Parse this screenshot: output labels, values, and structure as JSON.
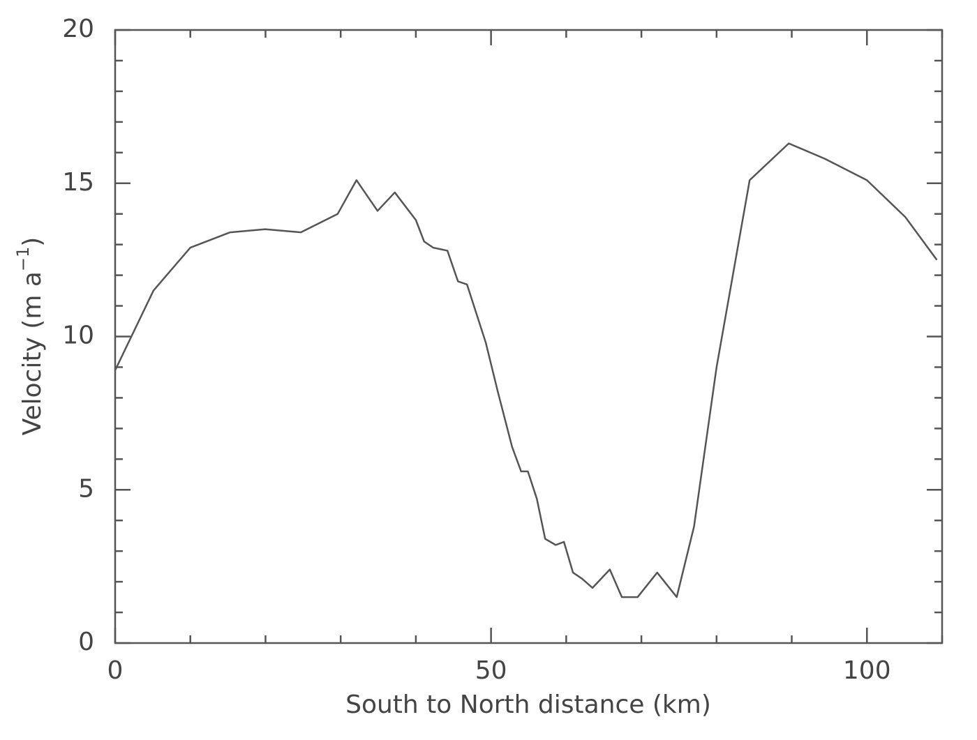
{
  "chart_data": {
    "type": "line",
    "x_label": "South to North distance (km)",
    "y_label_parts": [
      "Velocity (m a",
      "−1",
      ")"
    ],
    "xlim": [
      0,
      110
    ],
    "ylim": [
      0,
      20
    ],
    "xticks": [
      0,
      50,
      100
    ],
    "yticks": [
      0,
      5,
      10,
      15,
      20
    ],
    "xminorticks": [
      10,
      20,
      30,
      40,
      60,
      70,
      80,
      90,
      110
    ],
    "yminorticks": [
      1,
      2,
      3,
      4,
      6,
      7,
      8,
      9,
      11,
      12,
      13,
      14,
      16,
      17,
      18,
      19
    ],
    "grid": false,
    "series": [
      {
        "color": "#555555",
        "x": [
          0,
          5.1,
          10,
          15.3,
          20,
          24.7,
          29.6,
          32.1,
          34.9,
          37.2,
          40,
          41.1,
          42.3,
          44.2,
          45.6,
          46.8,
          49.3,
          50.9,
          52.8,
          54,
          54.9,
          56.1,
          57.2,
          58.6,
          59.7,
          60.9,
          62.1,
          63.5,
          65.8,
          67.4,
          69.5,
          72.1,
          74.7,
          77,
          80,
          84.4,
          89.6,
          94.4,
          100,
          105.1,
          109.3
        ],
        "values": [
          8.9,
          11.5,
          12.9,
          13.4,
          13.5,
          13.4,
          14,
          15.1,
          14.1,
          14.7,
          13.8,
          13.1,
          12.9,
          12.8,
          11.8,
          11.7,
          9.8,
          8.2,
          6.4,
          5.6,
          5.6,
          4.7,
          3.4,
          3.2,
          3.3,
          2.3,
          2.1,
          1.8,
          2.4,
          1.5,
          1.5,
          2.3,
          1.5,
          3.8,
          9,
          15.1,
          16.3,
          15.8,
          15.1,
          13.9,
          12.5
        ]
      }
    ]
  }
}
